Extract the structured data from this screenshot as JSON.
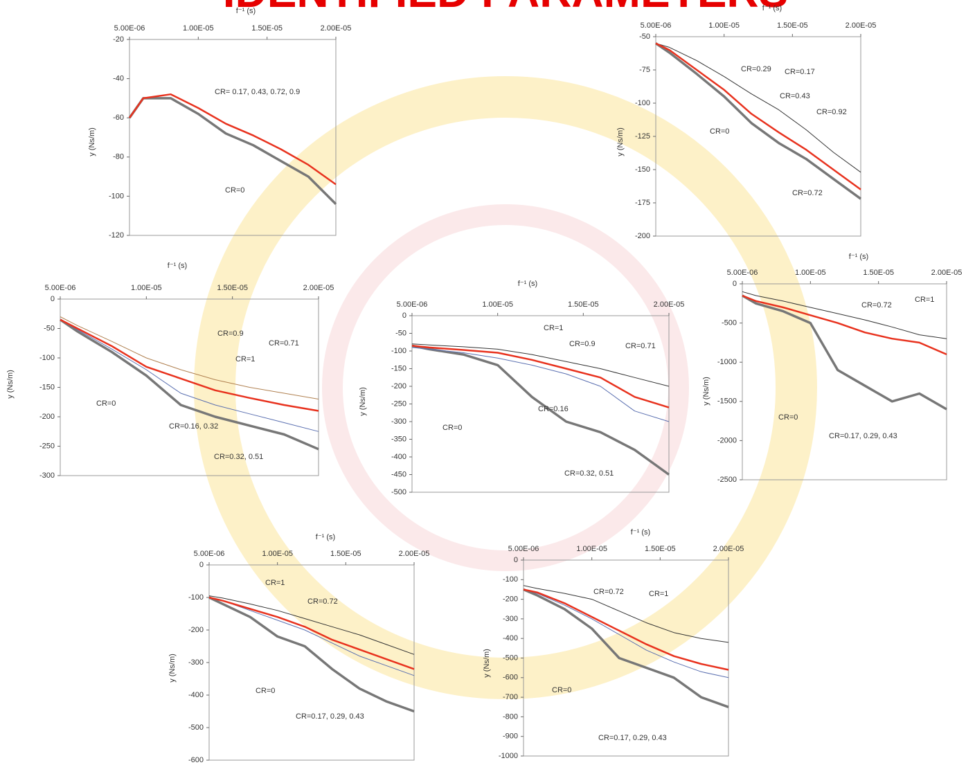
{
  "title": "IDENTIFIED PARAMETERS",
  "chart_data": [
    {
      "type": "line",
      "x_label": "f⁻¹ (s)",
      "y_label": "y (Ns/m)",
      "x": [
        5e-06,
        6e-06,
        8e-06,
        1e-05,
        1.2e-05,
        1.4e-05,
        1.6e-05,
        1.8e-05,
        2e-05
      ],
      "xlim": [
        5e-06,
        2e-05
      ],
      "xticks": [
        {
          "value": 5e-06,
          "label": "5.00E-06"
        },
        {
          "value": 1e-05,
          "label": "1.00E-05"
        },
        {
          "value": 1.5e-05,
          "label": "1.50E-05"
        },
        {
          "value": 2e-05,
          "label": "2.00E-05"
        }
      ],
      "ylim": [
        -120,
        -20
      ],
      "yticks": [
        -20,
        -40,
        -60,
        -80,
        -100,
        -120
      ],
      "series": [
        {
          "color": "#777777",
          "values": [
            -60,
            -50,
            -50,
            -58,
            -68,
            -74,
            -82,
            -90,
            -104
          ]
        },
        {
          "color": "#e8321e",
          "values": [
            -60,
            -50,
            -48,
            -55,
            -63,
            -69,
            -76,
            -84,
            -94
          ]
        }
      ],
      "annotations": [
        "CR= 0.17, 0.43, 0.72, 0.9",
        "CR=0"
      ]
    },
    {
      "type": "line",
      "x_label": "f⁻¹ (s)",
      "y_label": "y (Ns/m)",
      "x": [
        5e-06,
        6e-06,
        8e-06,
        1e-05,
        1.2e-05,
        1.4e-05,
        1.6e-05,
        1.8e-05,
        2e-05
      ],
      "xlim": [
        5e-06,
        2e-05
      ],
      "xticks": [
        {
          "value": 5e-06,
          "label": "5.00E-06"
        },
        {
          "value": 1e-05,
          "label": "1.00E-05"
        },
        {
          "value": 1.5e-05,
          "label": "1.50E-05"
        },
        {
          "value": 2e-05,
          "label": "2.00E-05"
        }
      ],
      "ylim": [
        -200,
        -50
      ],
      "yticks": [
        -50,
        -75,
        -100,
        -125,
        -150,
        -175,
        -200
      ],
      "series": [
        {
          "color": "#333333",
          "values": [
            -55,
            -58,
            -68,
            -80,
            -93,
            -105,
            -120,
            -137,
            -152
          ]
        },
        {
          "color": "#777777",
          "values": [
            -55,
            -62,
            -78,
            -95,
            -115,
            -130,
            -142,
            -157,
            -172
          ]
        },
        {
          "color": "#e8321e",
          "values": [
            -55,
            -60,
            -75,
            -90,
            -108,
            -122,
            -135,
            -150,
            -165
          ]
        }
      ],
      "annotations": [
        "CR=0.29",
        "CR=0.17",
        "CR=0.43",
        "CR=0.92",
        "CR=0",
        "CR=0.72"
      ]
    },
    {
      "type": "line",
      "x_label": "f⁻¹ (s)",
      "y_label": "y (Ns/m)",
      "x": [
        5e-06,
        6e-06,
        8e-06,
        1e-05,
        1.2e-05,
        1.4e-05,
        1.6e-05,
        1.8e-05,
        2e-05
      ],
      "xlim": [
        5e-06,
        2e-05
      ],
      "xticks": [
        {
          "value": 5e-06,
          "label": "5.00E-06"
        },
        {
          "value": 1e-05,
          "label": "1.00E-05"
        },
        {
          "value": 1.5e-05,
          "label": "1.50E-05"
        },
        {
          "value": 2e-05,
          "label": "2.00E-05"
        }
      ],
      "ylim": [
        -300,
        0
      ],
      "yticks": [
        0,
        -50,
        -100,
        -150,
        -200,
        -250,
        -300
      ],
      "series": [
        {
          "color": "#b08050",
          "values": [
            -30,
            -45,
            -72,
            -100,
            -120,
            -137,
            -150,
            -160,
            -170
          ]
        },
        {
          "color": "#777777",
          "values": [
            -35,
            -55,
            -90,
            -130,
            -180,
            -200,
            -215,
            -230,
            -255
          ]
        },
        {
          "color": "#5a6fb0",
          "values": [
            -35,
            -52,
            -85,
            -120,
            -160,
            -180,
            -195,
            -210,
            -225
          ]
        },
        {
          "color": "#e8321e",
          "values": [
            -35,
            -50,
            -80,
            -115,
            -135,
            -155,
            -168,
            -180,
            -190
          ]
        }
      ],
      "annotations": [
        "CR=0.9",
        "CR=0.71",
        "CR=1",
        "CR=0",
        "CR=0.16, 0.32",
        "CR=0.32, 0.51"
      ]
    },
    {
      "type": "line",
      "x_label": "f⁻¹ (s)",
      "y_label": "y (Ns/m)",
      "x": [
        5e-06,
        6e-06,
        8e-06,
        1e-05,
        1.2e-05,
        1.4e-05,
        1.6e-05,
        1.8e-05,
        2e-05
      ],
      "xlim": [
        5e-06,
        2e-05
      ],
      "xticks": [
        {
          "value": 5e-06,
          "label": "5.00E-06"
        },
        {
          "value": 1e-05,
          "label": "1.00E-05"
        },
        {
          "value": 1.5e-05,
          "label": "1.50E-05"
        },
        {
          "value": 2e-05,
          "label": "2.00E-05"
        }
      ],
      "ylim": [
        -500,
        0
      ],
      "yticks": [
        0,
        -50,
        -100,
        -150,
        -200,
        -250,
        -300,
        -350,
        -400,
        -450,
        -500
      ],
      "series": [
        {
          "color": "#333333",
          "values": [
            -80,
            -83,
            -88,
            -95,
            -110,
            -130,
            -150,
            -175,
            -200
          ]
        },
        {
          "color": "#777777",
          "values": [
            -85,
            -95,
            -110,
            -140,
            -230,
            -300,
            -330,
            -380,
            -450
          ]
        },
        {
          "color": "#5a6fb0",
          "values": [
            -90,
            -95,
            -105,
            -120,
            -140,
            -165,
            -200,
            -270,
            -300
          ]
        },
        {
          "color": "#e8321e",
          "values": [
            -85,
            -90,
            -97,
            -105,
            -125,
            -150,
            -175,
            -230,
            -260
          ]
        }
      ],
      "annotations": [
        "CR=1",
        "CR=0.9",
        "CR=0.71",
        "CR=0.16",
        "CR=0",
        "CR=0.32, 0.51"
      ]
    },
    {
      "type": "line",
      "x_label": "f⁻¹ (s)",
      "y_label": "y (Ns/m)",
      "x": [
        5e-06,
        6e-06,
        8e-06,
        1e-05,
        1.2e-05,
        1.4e-05,
        1.6e-05,
        1.8e-05,
        2e-05
      ],
      "xlim": [
        5e-06,
        2e-05
      ],
      "xticks": [
        {
          "value": 5e-06,
          "label": "5.00E-06"
        },
        {
          "value": 1e-05,
          "label": "1.00E-05"
        },
        {
          "value": 1.5e-05,
          "label": "1.50E-05"
        },
        {
          "value": 2e-05,
          "label": "2.00E-05"
        }
      ],
      "ylim": [
        -2500,
        0
      ],
      "yticks": [
        0,
        -500,
        -1000,
        -1500,
        -2000,
        -2500
      ],
      "series": [
        {
          "color": "#333333",
          "values": [
            -100,
            -150,
            -220,
            -300,
            -380,
            -460,
            -550,
            -650,
            -700
          ]
        },
        {
          "color": "#777777",
          "values": [
            -150,
            -250,
            -350,
            -500,
            -1100,
            -1300,
            -1500,
            -1400,
            -1600
          ]
        },
        {
          "color": "#e8321e",
          "values": [
            -150,
            -220,
            -300,
            -400,
            -500,
            -620,
            -700,
            -750,
            -900
          ]
        }
      ],
      "annotations": [
        "CR=0.72",
        "CR=1",
        "CR=0",
        "CR=0.17, 0.29, 0.43"
      ]
    },
    {
      "type": "line",
      "x_label": "f⁻¹ (s)",
      "y_label": "y (Ns/m)",
      "x": [
        5e-06,
        6e-06,
        8e-06,
        1e-05,
        1.2e-05,
        1.4e-05,
        1.6e-05,
        1.8e-05,
        2e-05
      ],
      "xlim": [
        5e-06,
        2e-05
      ],
      "xticks": [
        {
          "value": 5e-06,
          "label": "5.00E-06"
        },
        {
          "value": 1e-05,
          "label": "1.00E-05"
        },
        {
          "value": 1.5e-05,
          "label": "1.50E-05"
        },
        {
          "value": 2e-05,
          "label": "2.00E-05"
        }
      ],
      "ylim": [
        -600,
        0
      ],
      "yticks": [
        0,
        -100,
        -200,
        -300,
        -400,
        -500,
        -600
      ],
      "series": [
        {
          "color": "#333333",
          "values": [
            -95,
            -102,
            -120,
            -140,
            -165,
            -190,
            -215,
            -245,
            -275
          ]
        },
        {
          "color": "#777777",
          "values": [
            -100,
            -120,
            -160,
            -220,
            -250,
            -320,
            -380,
            -420,
            -450
          ]
        },
        {
          "color": "#5a6fb0",
          "values": [
            -100,
            -110,
            -140,
            -170,
            -200,
            -240,
            -280,
            -310,
            -340
          ]
        },
        {
          "color": "#e8321e",
          "values": [
            -100,
            -110,
            -135,
            -160,
            -190,
            -230,
            -260,
            -290,
            -320
          ]
        }
      ],
      "annotations": [
        "CR=1",
        "CR=0.72",
        "CR=0",
        "CR=0.17, 0.29, 0.43"
      ]
    },
    {
      "type": "line",
      "x_label": "f⁻¹ (s)",
      "y_label": "y (Ns/m)",
      "x": [
        5e-06,
        6e-06,
        8e-06,
        1e-05,
        1.2e-05,
        1.4e-05,
        1.6e-05,
        1.8e-05,
        2e-05
      ],
      "xlim": [
        5e-06,
        2e-05
      ],
      "xticks": [
        {
          "value": 5e-06,
          "label": "5.00E-06"
        },
        {
          "value": 1e-05,
          "label": "1.00E-05"
        },
        {
          "value": 1.5e-05,
          "label": "1.50E-05"
        },
        {
          "value": 2e-05,
          "label": "2.00E-05"
        }
      ],
      "ylim": [
        -1000,
        0
      ],
      "yticks": [
        0,
        -100,
        -200,
        -300,
        -400,
        -500,
        -600,
        -700,
        -800,
        -900,
        -1000
      ],
      "series": [
        {
          "color": "#333333",
          "values": [
            -130,
            -145,
            -170,
            -200,
            -260,
            -320,
            -370,
            -400,
            -420
          ]
        },
        {
          "color": "#777777",
          "values": [
            -150,
            -180,
            -250,
            -350,
            -500,
            -550,
            -600,
            -700,
            -750
          ]
        },
        {
          "color": "#5a6fb0",
          "values": [
            -150,
            -170,
            -230,
            -300,
            -380,
            -460,
            -520,
            -570,
            -600
          ]
        },
        {
          "color": "#e8321e",
          "values": [
            -150,
            -165,
            -220,
            -290,
            -360,
            -430,
            -490,
            -530,
            -560
          ]
        }
      ],
      "annotations": [
        "CR=0.72",
        "CR=1",
        "CR=0",
        "CR=0.17, 0.29, 0.43"
      ]
    }
  ]
}
